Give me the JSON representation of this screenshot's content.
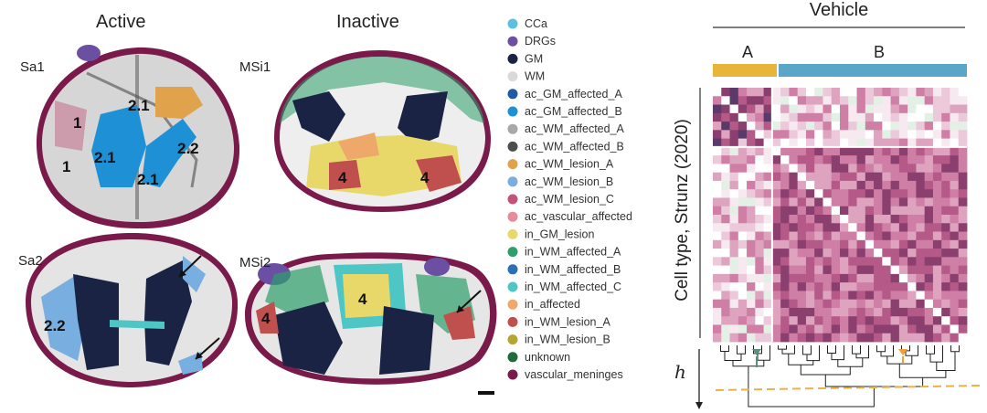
{
  "panels": {
    "active_title": "Active",
    "inactive_title": "Inactive",
    "samples": [
      "Sa1",
      "MSi1",
      "Sa2",
      "MSi2"
    ],
    "region_labels": {
      "sa1": [
        "2.1",
        "1",
        "2.1",
        "2.2",
        "1",
        "2.1"
      ],
      "msi1": [
        "4",
        "4"
      ],
      "sa2": [
        "2.2"
      ],
      "msi2": [
        "4",
        "4"
      ]
    }
  },
  "legend": {
    "items": [
      {
        "label": "CCa",
        "color": "#5bc0de"
      },
      {
        "label": "DRGs",
        "color": "#6a4fa3"
      },
      {
        "label": "GM",
        "color": "#1b2344"
      },
      {
        "label": "WM",
        "color": "#d9d9d9"
      },
      {
        "label": "ac_GM_affected_A",
        "color": "#1f5aa6"
      },
      {
        "label": "ac_GM_affected_B",
        "color": "#1e90d6"
      },
      {
        "label": "ac_WM_affected_A",
        "color": "#a8a8a8"
      },
      {
        "label": "ac_WM_affected_B",
        "color": "#4d4d4d"
      },
      {
        "label": "ac_WM_lesion_A",
        "color": "#e0a24a"
      },
      {
        "label": "ac_WM_lesion_B",
        "color": "#79aee0"
      },
      {
        "label": "ac_WM_lesion_C",
        "color": "#c2547a"
      },
      {
        "label": "ac_vascular_affected",
        "color": "#e88a99"
      },
      {
        "label": "in_GM_lesion",
        "color": "#e8d86a"
      },
      {
        "label": "in_WM_affected_A",
        "color": "#2e9e6b"
      },
      {
        "label": "in_WM_affected_B",
        "color": "#2b6fb5"
      },
      {
        "label": "in_WM_affected_C",
        "color": "#4fc6c6"
      },
      {
        "label": "in_affected",
        "color": "#eea86a"
      },
      {
        "label": "in_WM_lesion_A",
        "color": "#c0504d"
      },
      {
        "label": "in_WM_lesion_B",
        "color": "#b5a532"
      },
      {
        "label": "unknown",
        "color": "#1f6b3a"
      },
      {
        "label": "vascular_meninges",
        "color": "#7a1a4a"
      }
    ]
  },
  "heatmap": {
    "title": "Vehicle",
    "cluster_a": "A",
    "cluster_b": "B",
    "cluster_a_color": "#e6b53a",
    "cluster_b_color": "#5aa6c8",
    "ylabel": "Cell type, Strunz (2020)",
    "h_label": "h",
    "marker_a_color": "#5a8f7b",
    "marker_b_color": "#f0a030",
    "cut_line_color": "#f0b040"
  }
}
